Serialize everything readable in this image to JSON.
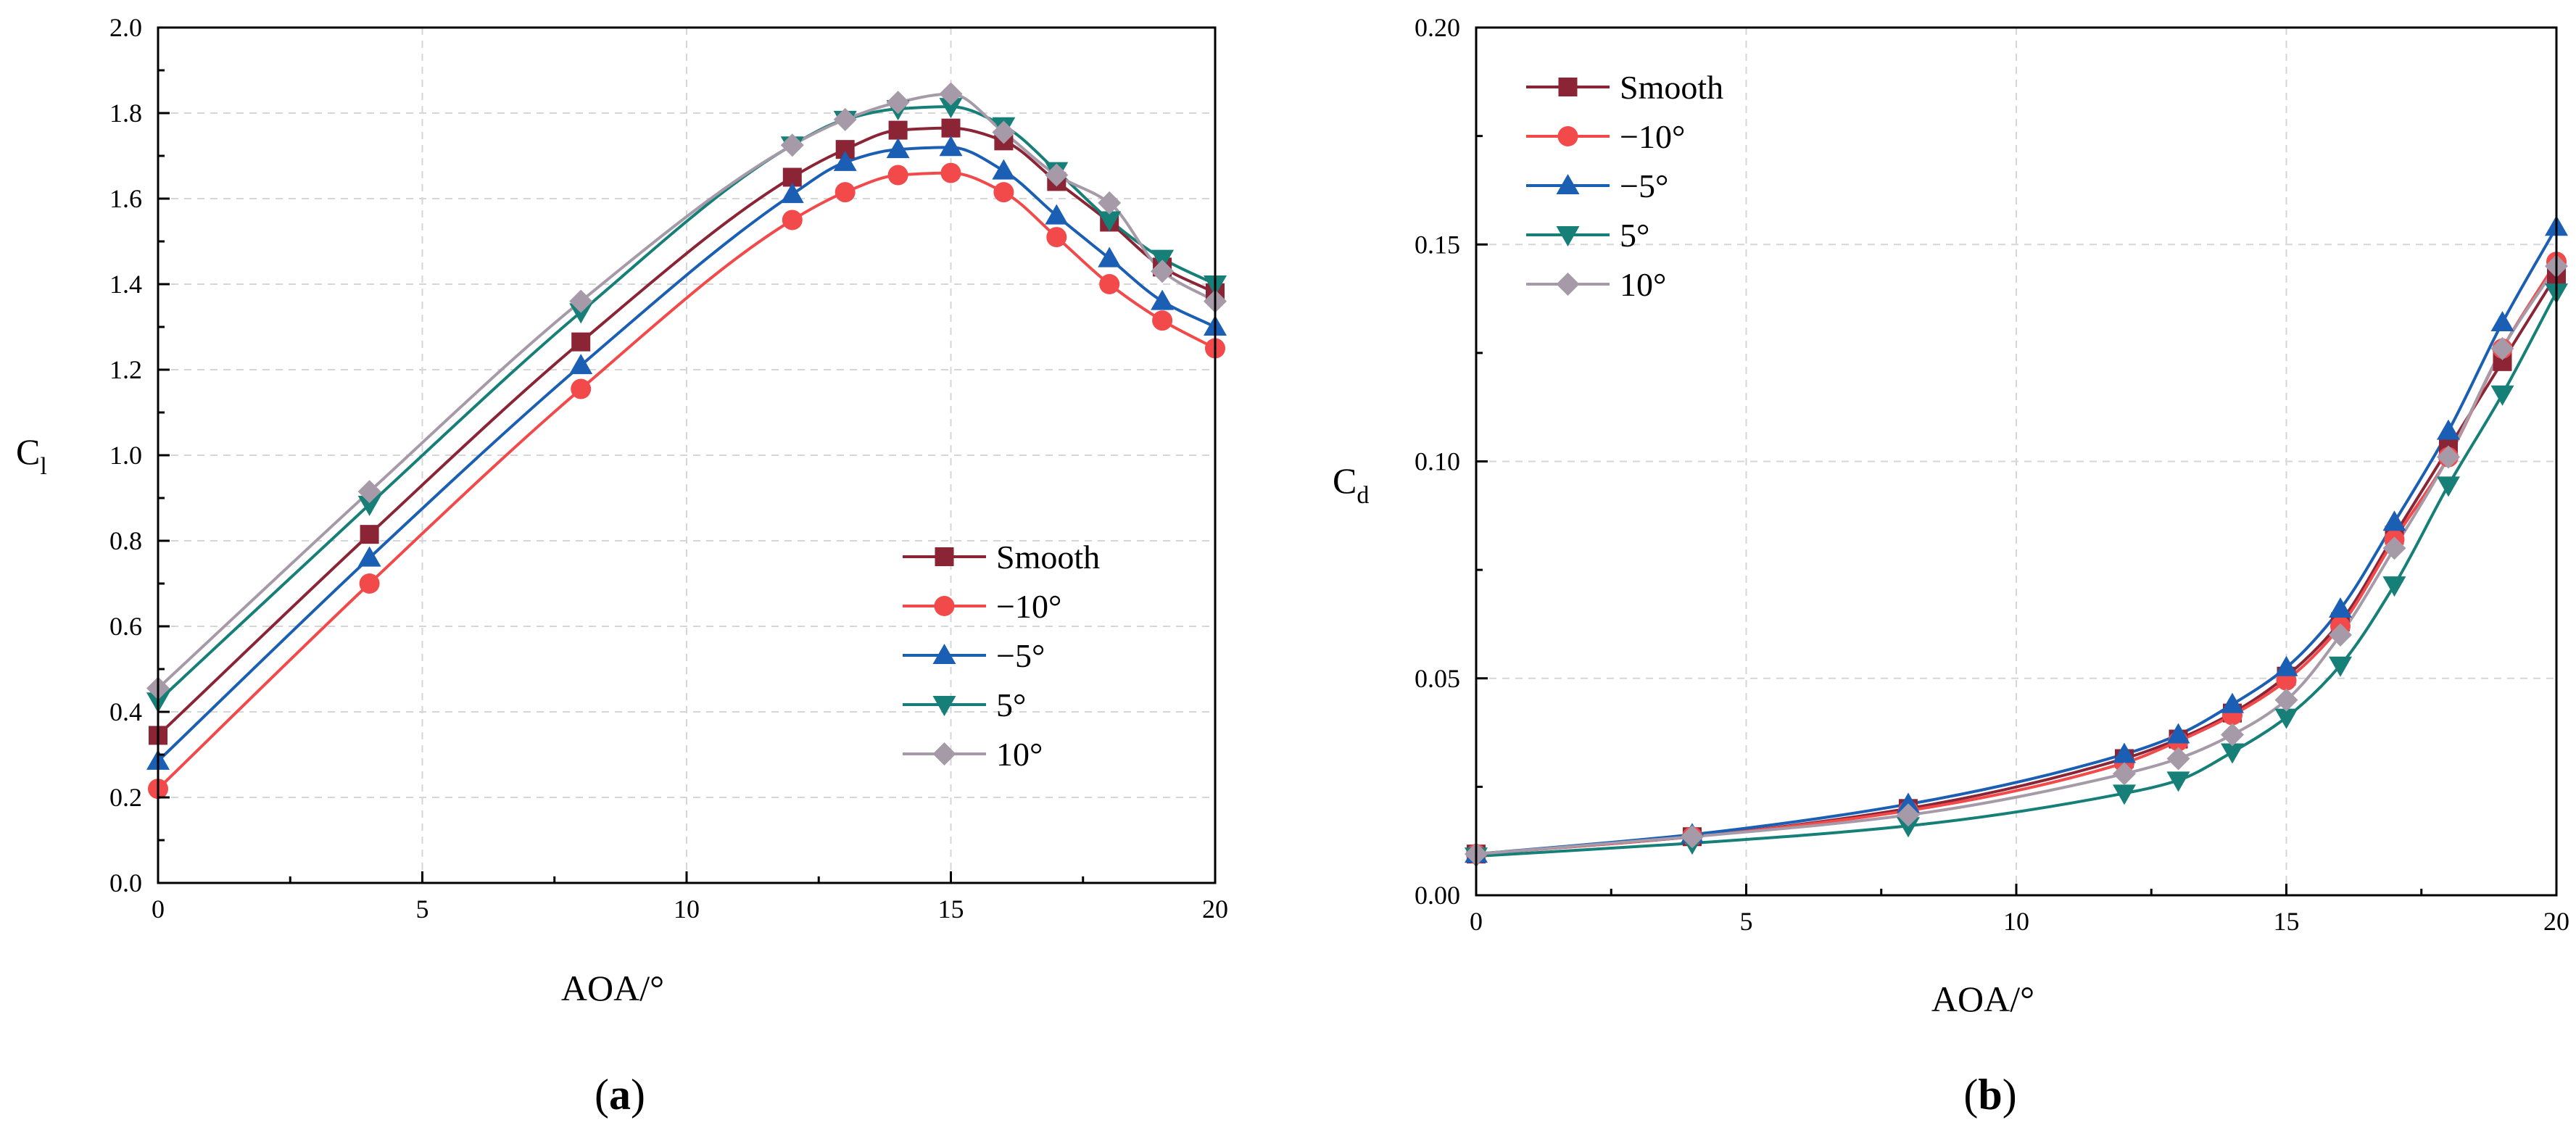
{
  "chart_data": [
    {
      "id": "a",
      "type": "line",
      "panel_label": "a",
      "xlabel": "AOA/°",
      "ylabel_main": "C",
      "ylabel_sub": "l",
      "xlim": [
        0,
        20
      ],
      "ylim": [
        0,
        2.0
      ],
      "xticks": [
        0,
        5,
        10,
        15,
        20
      ],
      "xtick_labels": [
        "0",
        "5",
        "10",
        "15",
        "20"
      ],
      "yticks": [
        0,
        0.2,
        0.4,
        0.6,
        0.8,
        1.0,
        1.2,
        1.4,
        1.6,
        1.8,
        2.0
      ],
      "ytick_labels": [
        "0.0",
        "0.2",
        "0.4",
        "0.6",
        "0.8",
        "1.0",
        "1.2",
        "1.4",
        "1.6",
        "1.8",
        "2.0"
      ],
      "grid": true,
      "legend_position": "lower-right",
      "series": [
        {
          "name": "Smooth",
          "color": "#8b2535",
          "marker": "square",
          "x": [
            0,
            4,
            8,
            12,
            13,
            14,
            15,
            16,
            17,
            18,
            19,
            20
          ],
          "y": [
            0.345,
            0.815,
            1.265,
            1.65,
            1.715,
            1.76,
            1.765,
            1.735,
            1.64,
            1.545,
            1.44,
            1.38
          ]
        },
        {
          "name": "−10°",
          "color": "#f24a4a",
          "marker": "circle",
          "x": [
            0,
            4,
            8,
            12,
            13,
            14,
            15,
            16,
            17,
            18,
            19,
            20
          ],
          "y": [
            0.22,
            0.7,
            1.155,
            1.55,
            1.615,
            1.655,
            1.66,
            1.615,
            1.51,
            1.4,
            1.315,
            1.25
          ]
        },
        {
          "name": "−5°",
          "color": "#1a5fb4",
          "marker": "triangle-up",
          "x": [
            0,
            4,
            8,
            12,
            13,
            14,
            15,
            16,
            17,
            18,
            19,
            20
          ],
          "y": [
            0.285,
            0.76,
            1.21,
            1.61,
            1.685,
            1.715,
            1.72,
            1.665,
            1.56,
            1.46,
            1.36,
            1.3
          ]
        },
        {
          "name": "5°",
          "color": "#157f78",
          "marker": "triangle-down",
          "x": [
            0,
            4,
            8,
            12,
            13,
            14,
            15,
            16,
            17,
            18,
            19,
            20
          ],
          "y": [
            0.425,
            0.885,
            1.335,
            1.725,
            1.785,
            1.81,
            1.815,
            1.77,
            1.665,
            1.55,
            1.46,
            1.4
          ]
        },
        {
          "name": "10°",
          "color": "#a79aa8",
          "marker": "diamond",
          "x": [
            0,
            4,
            8,
            12,
            13,
            14,
            15,
            16,
            17,
            18,
            19,
            20
          ],
          "y": [
            0.455,
            0.915,
            1.36,
            1.725,
            1.785,
            1.825,
            1.845,
            1.755,
            1.655,
            1.59,
            1.43,
            1.36
          ]
        }
      ]
    },
    {
      "id": "b",
      "type": "line",
      "panel_label": "b",
      "xlabel": "AOA/°",
      "ylabel_main": "C",
      "ylabel_sub": "d",
      "xlim": [
        0,
        20
      ],
      "ylim": [
        0,
        0.2
      ],
      "xticks": [
        0,
        5,
        10,
        15,
        20
      ],
      "xtick_labels": [
        "0",
        "5",
        "10",
        "15",
        "20"
      ],
      "yticks": [
        0,
        0.05,
        0.1,
        0.15,
        0.2
      ],
      "ytick_labels": [
        "0.00",
        "0.05",
        "0.10",
        "0.15",
        "0.20"
      ],
      "grid": true,
      "legend_position": "top-left",
      "series": [
        {
          "name": "Smooth",
          "color": "#8b2535",
          "marker": "square",
          "x": [
            0,
            4,
            8,
            12,
            13,
            14,
            15,
            16,
            17,
            18,
            19,
            20
          ],
          "y": [
            0.0095,
            0.0135,
            0.02,
            0.0315,
            0.036,
            0.042,
            0.0505,
            0.063,
            0.083,
            0.103,
            0.123,
            0.143
          ]
        },
        {
          "name": "−10°",
          "color": "#f24a4a",
          "marker": "circle",
          "x": [
            0,
            4,
            8,
            12,
            13,
            14,
            15,
            16,
            17,
            18,
            19,
            20
          ],
          "y": [
            0.0095,
            0.0135,
            0.0195,
            0.0305,
            0.0355,
            0.0415,
            0.0495,
            0.062,
            0.082,
            0.101,
            0.126,
            0.146
          ]
        },
        {
          "name": "−5°",
          "color": "#1a5fb4",
          "marker": "triangle-up",
          "x": [
            0,
            4,
            8,
            12,
            13,
            14,
            15,
            16,
            17,
            18,
            19,
            20
          ],
          "y": [
            0.0095,
            0.014,
            0.021,
            0.0325,
            0.037,
            0.044,
            0.0525,
            0.066,
            0.086,
            0.107,
            0.132,
            0.154
          ]
        },
        {
          "name": "5°",
          "color": "#157f78",
          "marker": "triangle-down",
          "x": [
            0,
            4,
            8,
            12,
            13,
            14,
            15,
            16,
            17,
            18,
            19,
            20
          ],
          "y": [
            0.009,
            0.012,
            0.016,
            0.0235,
            0.0265,
            0.033,
            0.041,
            0.053,
            0.0715,
            0.0945,
            0.1155,
            0.139
          ]
        },
        {
          "name": "10°",
          "color": "#a79aa8",
          "marker": "diamond",
          "x": [
            0,
            4,
            8,
            12,
            13,
            14,
            15,
            16,
            17,
            18,
            19,
            20
          ],
          "y": [
            0.0095,
            0.0135,
            0.0185,
            0.028,
            0.0315,
            0.037,
            0.045,
            0.06,
            0.08,
            0.101,
            0.126,
            0.145
          ]
        }
      ]
    }
  ]
}
